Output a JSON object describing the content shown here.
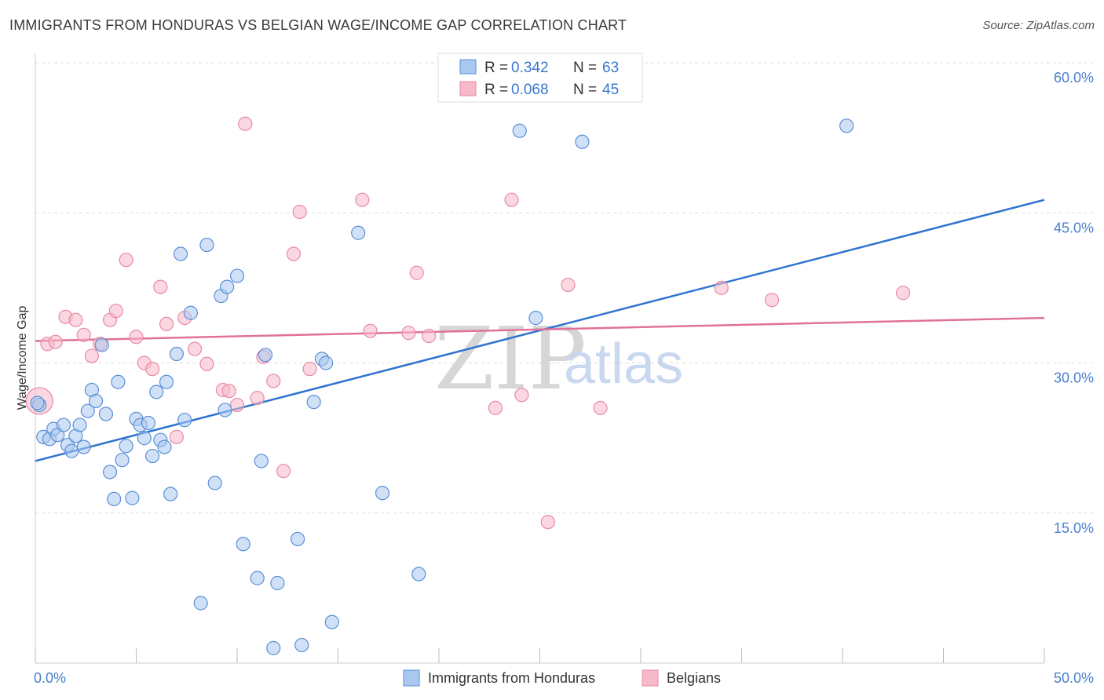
{
  "title": "IMMIGRANTS FROM HONDURAS VS BELGIAN WAGE/INCOME GAP CORRELATION CHART",
  "source": "Source: ZipAtlas.com",
  "watermark": {
    "zip": "ZIP",
    "atlas": "atlas"
  },
  "colors": {
    "blue_fill": "#a9c8f0",
    "blue_stroke": "#5b8fd6",
    "blue_line": "#2f74d0",
    "pink_fill": "#f7b8c9",
    "pink_stroke": "#e88aa6",
    "pink_line": "#e0719a",
    "axis_text": "#4a7fd0",
    "grid": "#dddddd"
  },
  "legend": {
    "rows": [
      {
        "r_label": "R =",
        "r_value": "0.342",
        "n_label": "N =",
        "n_value": "63"
      },
      {
        "r_label": "R =",
        "r_value": "0.068",
        "n_label": "N =",
        "n_value": "45"
      }
    ]
  },
  "bottom_legend": {
    "series1": "Immigrants from Honduras",
    "series2": "Belgians"
  },
  "chart_data": {
    "type": "scatter",
    "title": "IMMIGRANTS FROM HONDURAS VS BELGIAN WAGE/INCOME GAP CORRELATION CHART",
    "xlabel": "",
    "ylabel": "Wage/Income Gap",
    "xlim": [
      0,
      50
    ],
    "ylim": [
      0,
      60
    ],
    "x_tick_labels": [
      "0.0%",
      "50.0%"
    ],
    "y_tick_labels": [
      "15.0%",
      "30.0%",
      "45.0%",
      "60.0%"
    ],
    "y_ticks": [
      15,
      30,
      45,
      60
    ],
    "grid": true,
    "legend_position": "top-center",
    "series": [
      {
        "name": "Immigrants from Honduras",
        "color": "#5b8fd6",
        "trend": {
          "x": [
            0,
            50
          ],
          "y": [
            20.2,
            46.3
          ]
        },
        "points": [
          [
            0.2,
            25.8
          ],
          [
            0.4,
            22.6
          ],
          [
            0.7,
            22.4
          ],
          [
            0.9,
            23.4
          ],
          [
            1.1,
            22.8
          ],
          [
            1.4,
            23.8
          ],
          [
            1.6,
            21.8
          ],
          [
            1.8,
            21.2
          ],
          [
            2.0,
            22.7
          ],
          [
            2.2,
            23.8
          ],
          [
            2.4,
            21.6
          ],
          [
            2.6,
            25.2
          ],
          [
            2.8,
            27.3
          ],
          [
            3.0,
            26.2
          ],
          [
            3.3,
            31.8
          ],
          [
            3.5,
            24.9
          ],
          [
            3.7,
            19.1
          ],
          [
            3.9,
            16.4
          ],
          [
            4.1,
            28.1
          ],
          [
            4.3,
            20.3
          ],
          [
            4.5,
            21.7
          ],
          [
            4.8,
            16.5
          ],
          [
            5.0,
            24.4
          ],
          [
            5.2,
            23.8
          ],
          [
            5.4,
            22.5
          ],
          [
            5.6,
            24.0
          ],
          [
            5.8,
            20.7
          ],
          [
            6.0,
            27.1
          ],
          [
            6.2,
            22.3
          ],
          [
            6.4,
            21.6
          ],
          [
            6.5,
            28.1
          ],
          [
            6.7,
            16.9
          ],
          [
            7.0,
            30.9
          ],
          [
            7.2,
            40.9
          ],
          [
            7.4,
            24.3
          ],
          [
            7.7,
            35.0
          ],
          [
            8.2,
            6.0
          ],
          [
            8.5,
            41.8
          ],
          [
            8.9,
            18.0
          ],
          [
            9.2,
            36.7
          ],
          [
            9.4,
            25.3
          ],
          [
            9.5,
            37.6
          ],
          [
            10.0,
            38.7
          ],
          [
            10.3,
            11.9
          ],
          [
            11.0,
            8.5
          ],
          [
            11.2,
            20.2
          ],
          [
            11.4,
            30.8
          ],
          [
            11.8,
            1.5
          ],
          [
            12.0,
            8.0
          ],
          [
            13.0,
            12.4
          ],
          [
            13.2,
            1.8
          ],
          [
            14.2,
            30.4
          ],
          [
            14.4,
            30.0
          ],
          [
            14.7,
            4.1
          ],
          [
            13.8,
            26.1
          ],
          [
            16.0,
            43.0
          ],
          [
            17.2,
            17.0
          ],
          [
            19.0,
            8.9
          ],
          [
            24.0,
            53.2
          ],
          [
            24.8,
            34.5
          ],
          [
            27.1,
            52.1
          ],
          [
            40.2,
            53.7
          ],
          [
            0.1,
            26.0
          ]
        ]
      },
      {
        "name": "Belgians",
        "color": "#e88aa6",
        "trend": {
          "x": [
            0,
            50
          ],
          "y": [
            32.2,
            34.5
          ]
        },
        "points": [
          [
            0.2,
            26.2
          ],
          [
            0.6,
            31.9
          ],
          [
            1.0,
            32.1
          ],
          [
            1.5,
            34.6
          ],
          [
            2.0,
            34.3
          ],
          [
            2.4,
            32.8
          ],
          [
            2.8,
            30.7
          ],
          [
            3.2,
            31.9
          ],
          [
            3.7,
            34.3
          ],
          [
            4.0,
            35.2
          ],
          [
            4.5,
            40.3
          ],
          [
            5.0,
            32.6
          ],
          [
            5.4,
            30.0
          ],
          [
            5.8,
            29.4
          ],
          [
            6.2,
            37.6
          ],
          [
            6.5,
            33.9
          ],
          [
            7.0,
            22.6
          ],
          [
            7.4,
            34.5
          ],
          [
            7.9,
            31.4
          ],
          [
            8.5,
            29.9
          ],
          [
            9.3,
            27.3
          ],
          [
            9.6,
            27.2
          ],
          [
            10.0,
            25.8
          ],
          [
            10.4,
            53.9
          ],
          [
            11.0,
            26.5
          ],
          [
            11.3,
            30.6
          ],
          [
            11.8,
            28.2
          ],
          [
            12.3,
            19.2
          ],
          [
            12.8,
            40.9
          ],
          [
            13.1,
            45.1
          ],
          [
            13.6,
            29.4
          ],
          [
            16.6,
            33.2
          ],
          [
            16.2,
            46.3
          ],
          [
            18.5,
            33.0
          ],
          [
            18.9,
            39.0
          ],
          [
            19.5,
            32.7
          ],
          [
            22.8,
            25.5
          ],
          [
            23.6,
            46.3
          ],
          [
            24.1,
            26.8
          ],
          [
            25.4,
            14.1
          ],
          [
            26.4,
            37.8
          ],
          [
            28.0,
            25.5
          ],
          [
            34.0,
            37.5
          ],
          [
            36.5,
            36.3
          ],
          [
            43.0,
            37.0
          ]
        ]
      }
    ]
  }
}
